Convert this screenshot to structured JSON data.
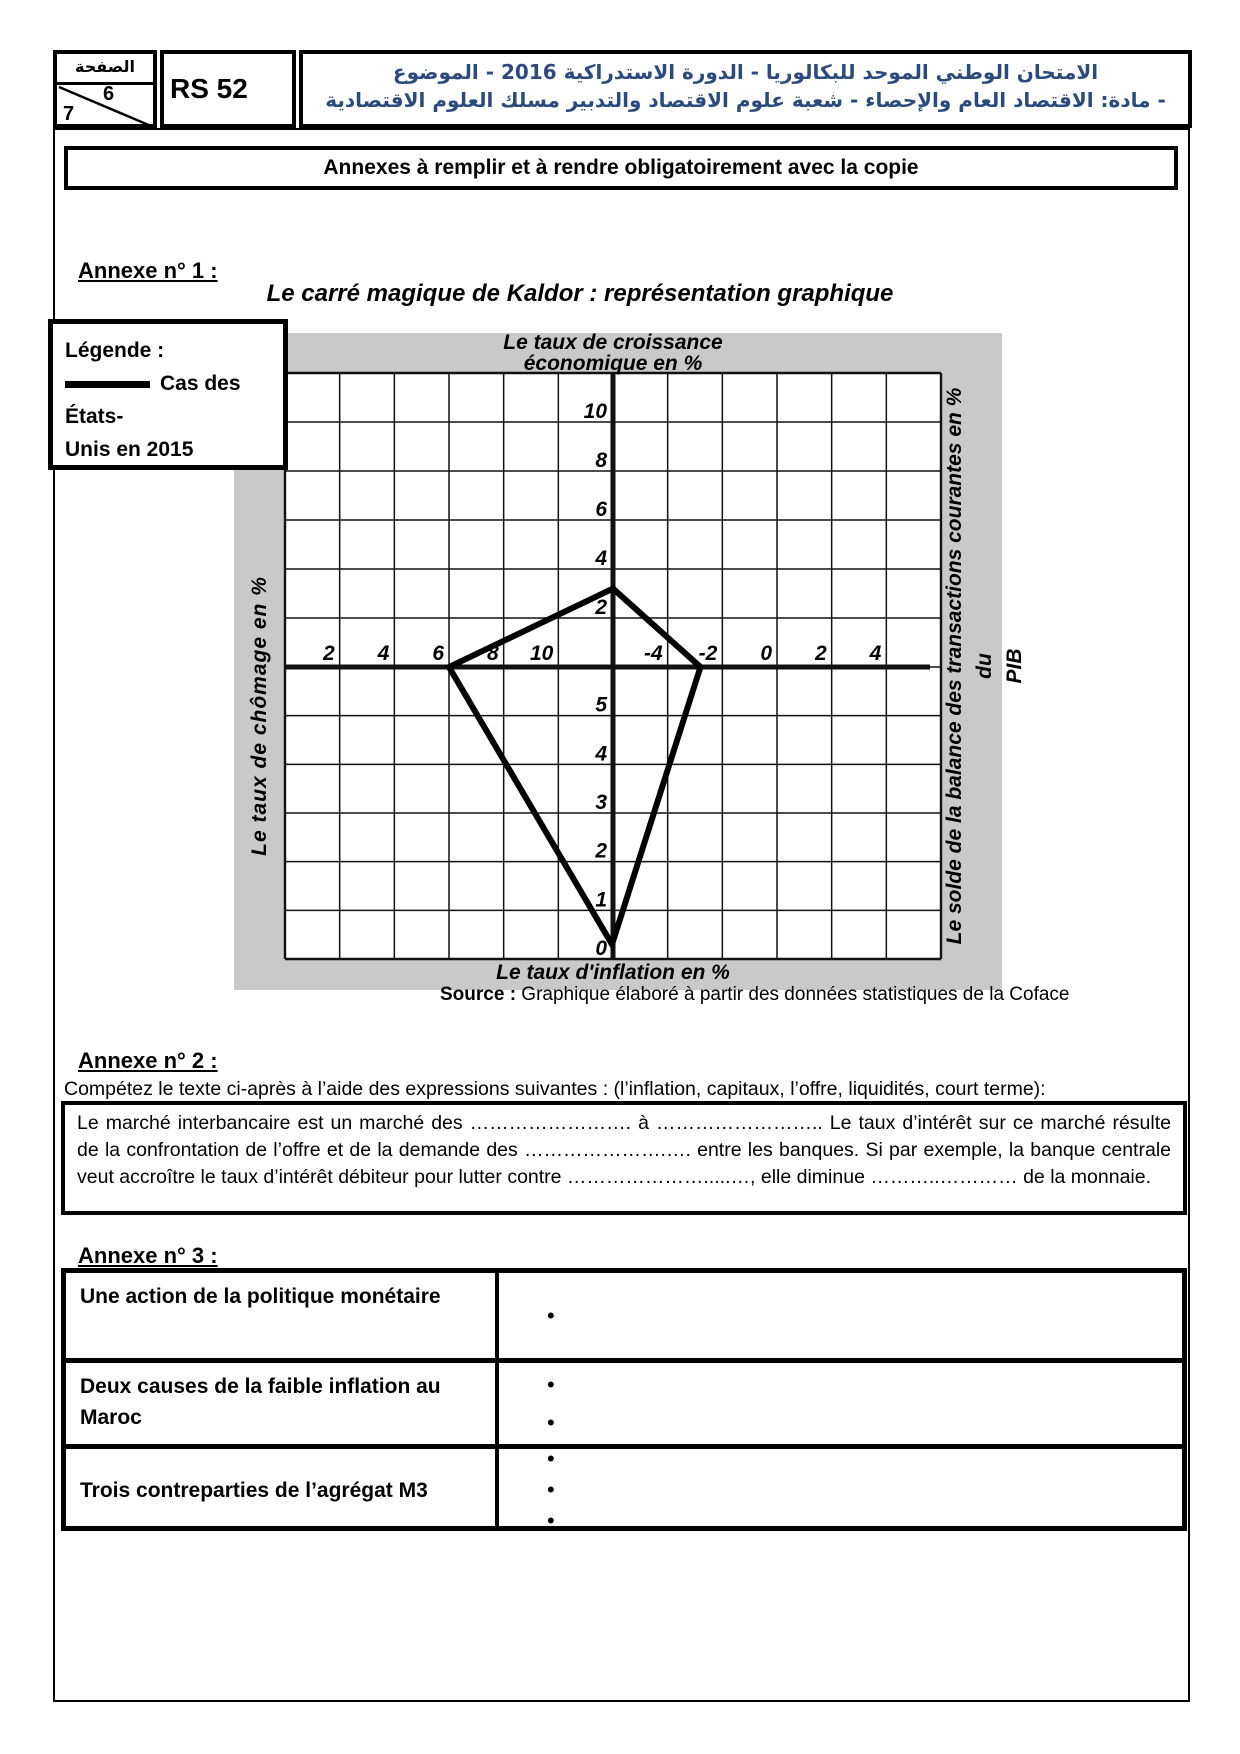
{
  "header": {
    "page_box_label": "الصفحة",
    "page_current": "6",
    "page_total": "7",
    "code": "RS 52",
    "exam_line1": "الامتحان الوطني الموحد للبكالوريا - الدورة الاستدراكية  2016 - الموضوع",
    "exam_line2": "- مادة: الاقتصاد العام والإحصاء - شعبة علوم الاقتصاد والتدبير مسلك العلوم الاقتصادية"
  },
  "banner": {
    "text": "Annexes à remplir et à rendre obligatoirement avec la copie"
  },
  "annexe1": {
    "heading": "Annexe n° 1 :",
    "title": "Le carré magique de Kaldor : représentation graphique",
    "legend": {
      "title": "Légende :",
      "item_line1": "Cas des États-",
      "item_line2": "Unis en 2015"
    },
    "source_label": "Source :",
    "source_text": " Graphique élaboré à partir des données statistiques de la Coface"
  },
  "chart_data": {
    "type": "line",
    "title": "Le carré magique de Kaldor : représentation graphique",
    "legend_entry": "Cas des États-Unis en 2015",
    "axes": {
      "top_label_line1": "Le taux de croissance",
      "top_label_line2": "économique en %",
      "bottom_label": "Le taux d'inflation en %",
      "left_label": "Le  taux  de chômage en %",
      "right_label_line1": "Le solde de la balance des transactions courantes en % du",
      "right_label_line2": "PIB",
      "ticks_vertical_above": [
        "10",
        "8",
        "6",
        "4",
        "2"
      ],
      "ticks_vertical_below": [
        "5",
        "4",
        "3",
        "2",
        "1",
        "0"
      ],
      "ticks_horizontal_left": [
        "2",
        "4",
        "6",
        "8",
        "10"
      ],
      "ticks_horizontal_right": [
        "-4",
        "-2",
        "0",
        "2",
        "4"
      ]
    },
    "grid": true,
    "series": [
      {
        "name": "Cas des États-Unis en 2015",
        "croissance_economique_pct": 3.2,
        "chomage_pct": 6,
        "inflation_pct": 0.3,
        "solde_transactions_courantes_pct_pib": -2.8
      }
    ]
  },
  "annexe2": {
    "heading": "Annexe n° 2 :",
    "instruction": "Compétez le texte ci-après à l’aide des expressions  suivantes : (l’inflation, capitaux, l’offre, liquidités, court terme):",
    "paragraph": "Le marché interbancaire  est un marché des ……………………. à ……………………..  Le taux d’intérêt sur ce marché résulte de la confrontation de l’offre et de la demande  des ………………….…. entre les banques. Si par exemple, la banque centrale veut accroître le taux d’intérêt débiteur pour lutter contre ………………….....…, elle diminue ………..………… de la monnaie."
  },
  "annexe3": {
    "heading": "Annexe n° 3 :",
    "rows": [
      {
        "label": "Une action de la politique monétaire",
        "bullets": [
          "•"
        ]
      },
      {
        "label": "Deux causes de la faible inflation au Maroc",
        "bullets": [
          "•",
          "•"
        ]
      },
      {
        "label": "Trois contreparties de l’agrégat M3",
        "bullets": [
          "•",
          "•",
          "•"
        ]
      }
    ]
  },
  "colors": {
    "band_gray": "#c9c9c9",
    "arabic_text": "#2b4a7d",
    "ink": "#000000"
  }
}
